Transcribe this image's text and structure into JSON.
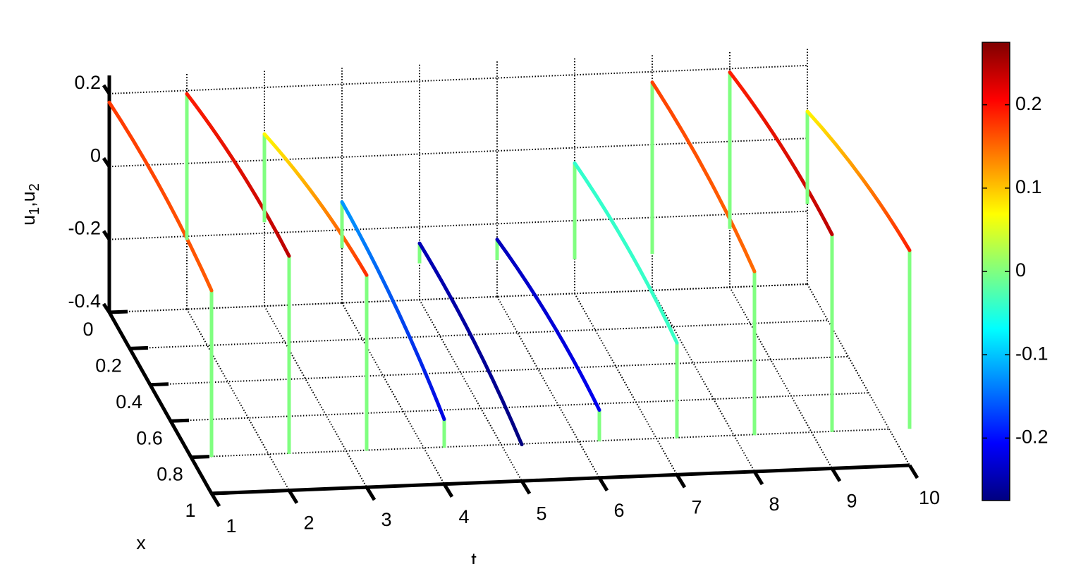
{
  "chart_data": {
    "type": "line3d",
    "xlabel": "t",
    "ylabel": "x",
    "zlabel_parts": [
      "u",
      "1",
      ",u",
      "2"
    ],
    "xlim": [
      1,
      10
    ],
    "xticks": [
      1,
      2,
      3,
      4,
      5,
      6,
      7,
      8,
      9,
      10
    ],
    "ylim": [
      0,
      1
    ],
    "yticks": [
      0,
      0.2,
      0.4,
      0.6,
      0.8,
      1
    ],
    "zlim": [
      -0.4,
      0.25
    ],
    "zticks": [
      -0.4,
      -0.2,
      0,
      0.2
    ],
    "grid": true,
    "colormap": "jet",
    "clim": [
      -0.275,
      0.275
    ],
    "colorbar_ticks": [
      -0.2,
      -0.1,
      0,
      0.1,
      0.2
    ],
    "t": [
      1,
      2,
      3,
      4,
      5,
      6,
      7,
      8,
      9,
      10
    ],
    "u1_at_x0": [
      0.176,
      0.191,
      0.072,
      -0.123,
      -0.245,
      -0.243,
      -0.042,
      0.171,
      0.19,
      0.074
    ],
    "u1_at_x1": [
      0.157,
      0.243,
      0.182,
      -0.222,
      -0.3,
      -0.214,
      -0.038,
      0.149,
      0.242,
      0.19
    ],
    "stem_x0_bottom": [
      null,
      -0.21,
      -0.17,
      -0.25,
      -0.3,
      -0.3,
      -0.306,
      -0.3,
      -0.24,
      -0.18
    ],
    "stem_x1_bottom": [
      -0.3,
      -0.3,
      -0.3,
      -0.3,
      null,
      -0.3,
      -0.3,
      -0.3,
      -0.3,
      -0.3
    ],
    "stem_color": "#80ff80"
  }
}
